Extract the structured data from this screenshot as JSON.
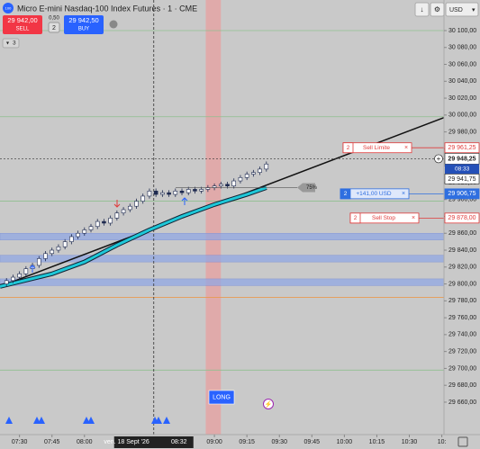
{
  "toolbar": {
    "logo": "100",
    "title": "Micro E-mini Nasdaq-100 Index Futures · 1 · CME",
    "sell_price": "29 942,00",
    "sell": "SELL",
    "spread": "0,50",
    "quantity": "2",
    "buy_price": "29 942,50",
    "buy": "BUY",
    "indicators": "3",
    "currency": "USD"
  },
  "chart_data": {
    "type": "candlestick",
    "x": [
      "07:24",
      "07:27",
      "07:30",
      "07:33",
      "07:36",
      "07:39",
      "07:42",
      "07:45",
      "07:48",
      "07:51",
      "07:54",
      "07:57",
      "08:00",
      "08:03",
      "08:06",
      "08:09",
      "08:12",
      "08:15",
      "08:18",
      "08:21",
      "08:24",
      "08:27",
      "08:30",
      "08:33",
      "08:36",
      "08:39",
      "08:42",
      "08:45",
      "08:48",
      "08:51",
      "08:54",
      "08:57",
      "09:00",
      "09:03",
      "09:06",
      "09:09",
      "09:12",
      "09:15",
      "09:18",
      "09:21",
      "09:24"
    ],
    "ohlc": [
      [
        29800,
        29807,
        29797,
        29804
      ],
      [
        29804,
        29811,
        29801,
        29808
      ],
      [
        29808,
        29815,
        29805,
        29812
      ],
      [
        29812,
        29821,
        29809,
        29818
      ],
      [
        29818,
        29825,
        29815,
        29822
      ],
      [
        29822,
        29833,
        29819,
        29830
      ],
      [
        29830,
        29839,
        29827,
        29836
      ],
      [
        29836,
        29843,
        29833,
        29840
      ],
      [
        29840,
        29847,
        29837,
        29844
      ],
      [
        29844,
        29853,
        29841,
        29850
      ],
      [
        29850,
        29859,
        29847,
        29856
      ],
      [
        29856,
        29863,
        29853,
        29860
      ],
      [
        29860,
        29867,
        29857,
        29864
      ],
      [
        29864,
        29871,
        29861,
        29868
      ],
      [
        29868,
        29877,
        29865,
        29874
      ],
      [
        29874,
        29877,
        29869,
        29872
      ],
      [
        29872,
        29881,
        29869,
        29878
      ],
      [
        29878,
        29887,
        29875,
        29884
      ],
      [
        29884,
        29891,
        29881,
        29888
      ],
      [
        29888,
        29895,
        29885,
        29892
      ],
      [
        29892,
        29901,
        29889,
        29898
      ],
      [
        29898,
        29907,
        29895,
        29904
      ],
      [
        29904,
        29913,
        29901,
        29910
      ],
      [
        29910,
        29913,
        29903,
        29906
      ],
      [
        29906,
        29911,
        29903,
        29908
      ],
      [
        29908,
        29911,
        29903,
        29906
      ],
      [
        29906,
        29913,
        29903,
        29910
      ],
      [
        29910,
        29913,
        29905,
        29908
      ],
      [
        29908,
        29915,
        29905,
        29912
      ],
      [
        29912,
        29915,
        29907,
        29910
      ],
      [
        29910,
        29915,
        29907,
        29912
      ],
      [
        29912,
        29917,
        29909,
        29914
      ],
      [
        29914,
        29919,
        29911,
        29916
      ],
      [
        29916,
        29921,
        29913,
        29918
      ],
      [
        29918,
        29921,
        29913,
        29916
      ],
      [
        29916,
        29925,
        29913,
        29922
      ],
      [
        29922,
        29929,
        29919,
        29926
      ],
      [
        29926,
        29933,
        29923,
        29930
      ],
      [
        29930,
        29935,
        29927,
        29932
      ],
      [
        29932,
        29939,
        29929,
        29936
      ],
      [
        29936,
        29945,
        29933,
        29942
      ]
    ],
    "up_color": "#ffffff",
    "down_color": "#1e2a50",
    "moving_average": {
      "color": "#1ec8d8",
      "x": [
        "07:21",
        "07:45",
        "08:00",
        "08:15",
        "08:30",
        "08:45",
        "09:00",
        "09:15",
        "09:24"
      ],
      "values": [
        29797,
        29812,
        29826,
        29846,
        29864,
        29880,
        29894,
        29906,
        29914
      ]
    },
    "trendline": {
      "x": [
        "07:21",
        "10:46"
      ],
      "values": [
        29797,
        29997
      ],
      "color": "#111111"
    },
    "zones": [
      {
        "from": 29852,
        "to": 29860,
        "color": "#8ea6e6"
      },
      {
        "from": 29826,
        "to": 29834,
        "color": "#8ea6e6"
      },
      {
        "from": 29798,
        "to": 29806,
        "color": "#8ea6e6"
      }
    ],
    "levels": [
      {
        "value": 30100,
        "color": "#8fbf8f"
      },
      {
        "value": 29998,
        "color": "#8fbf8f"
      },
      {
        "value": 29898,
        "color": "#8fbf8f"
      },
      {
        "value": 29698,
        "color": "#8fbf8f"
      },
      {
        "value": 29784,
        "color": "#e89a50"
      }
    ],
    "highlight": {
      "from": "08:56",
      "to": "09:03",
      "color": "#e6a3a3"
    },
    "crosshair": {
      "date": "ven. 18 Sept '26",
      "time": "08:32"
    },
    "last_price": {
      "value": 29948.25,
      "label": "29 948,25"
    },
    "countdown": "08:33",
    "bid_price": {
      "value": 29941.75,
      "label": "29 941,75"
    },
    "orders": [
      {
        "quantity": "2",
        "label": "Sell Limite",
        "price": {
          "value": 29961.25,
          "label": "29 961,25"
        },
        "color": "#e03b3b"
      },
      {
        "quantity": "2",
        "label": "+141,00 USD",
        "price": {
          "value": 29906.75,
          "label": "29 906,75"
        },
        "color": "#2f6fe0"
      },
      {
        "quantity": "2",
        "label": "Sell Stop",
        "price": {
          "value": 29878.0,
          "label": "29 878,00"
        },
        "color": "#e03b3b"
      }
    ],
    "close_icon": "×",
    "position_label": "75%",
    "long_button": "LONG",
    "xlim": [
      "07:21",
      "10:46"
    ],
    "ylim": [
      29621.6,
      30114.9
    ],
    "xticks": [
      "07:30",
      "07:45",
      "08:00",
      "09:00",
      "09:15",
      "09:30",
      "09:45",
      "10:00",
      "10:15",
      "10:30",
      {
        "value": "10:45",
        "label": "10:"
      }
    ],
    "yticks": [
      {
        "value": 30100,
        "label": "30 100,00"
      },
      {
        "value": 30080,
        "label": "30 080,00"
      },
      {
        "value": 30060,
        "label": "30 060,00"
      },
      {
        "value": 30040,
        "label": "30 040,00"
      },
      {
        "value": 30020,
        "label": "30 020,00"
      },
      {
        "value": 30000,
        "label": "30 000,00"
      },
      {
        "value": 29980,
        "label": "29 980,00"
      },
      {
        "value": 29960,
        "label": "29 960,00"
      },
      {
        "value": 29940,
        "label": "29 940,00"
      },
      {
        "value": 29920,
        "label": "29 920,00"
      },
      {
        "value": 29900,
        "label": "29 900,00"
      },
      {
        "value": 29880,
        "label": "29 880,00"
      },
      {
        "value": 29860,
        "label": "29 860,00"
      },
      {
        "value": 29840,
        "label": "29 840,00"
      },
      {
        "value": 29820,
        "label": "29 820,00"
      },
      {
        "value": 29800,
        "label": "29 800,00"
      },
      {
        "value": 29780,
        "label": "29 780,00"
      },
      {
        "value": 29760,
        "label": "29 760,00"
      },
      {
        "value": 29740,
        "label": "29 740,00"
      },
      {
        "value": 29720,
        "label": "29 720,00"
      },
      {
        "value": 29700,
        "label": "29 700,00"
      },
      {
        "value": 29680,
        "label": "29 680,00"
      },
      {
        "value": 29660,
        "label": "29 660,00"
      }
    ]
  }
}
